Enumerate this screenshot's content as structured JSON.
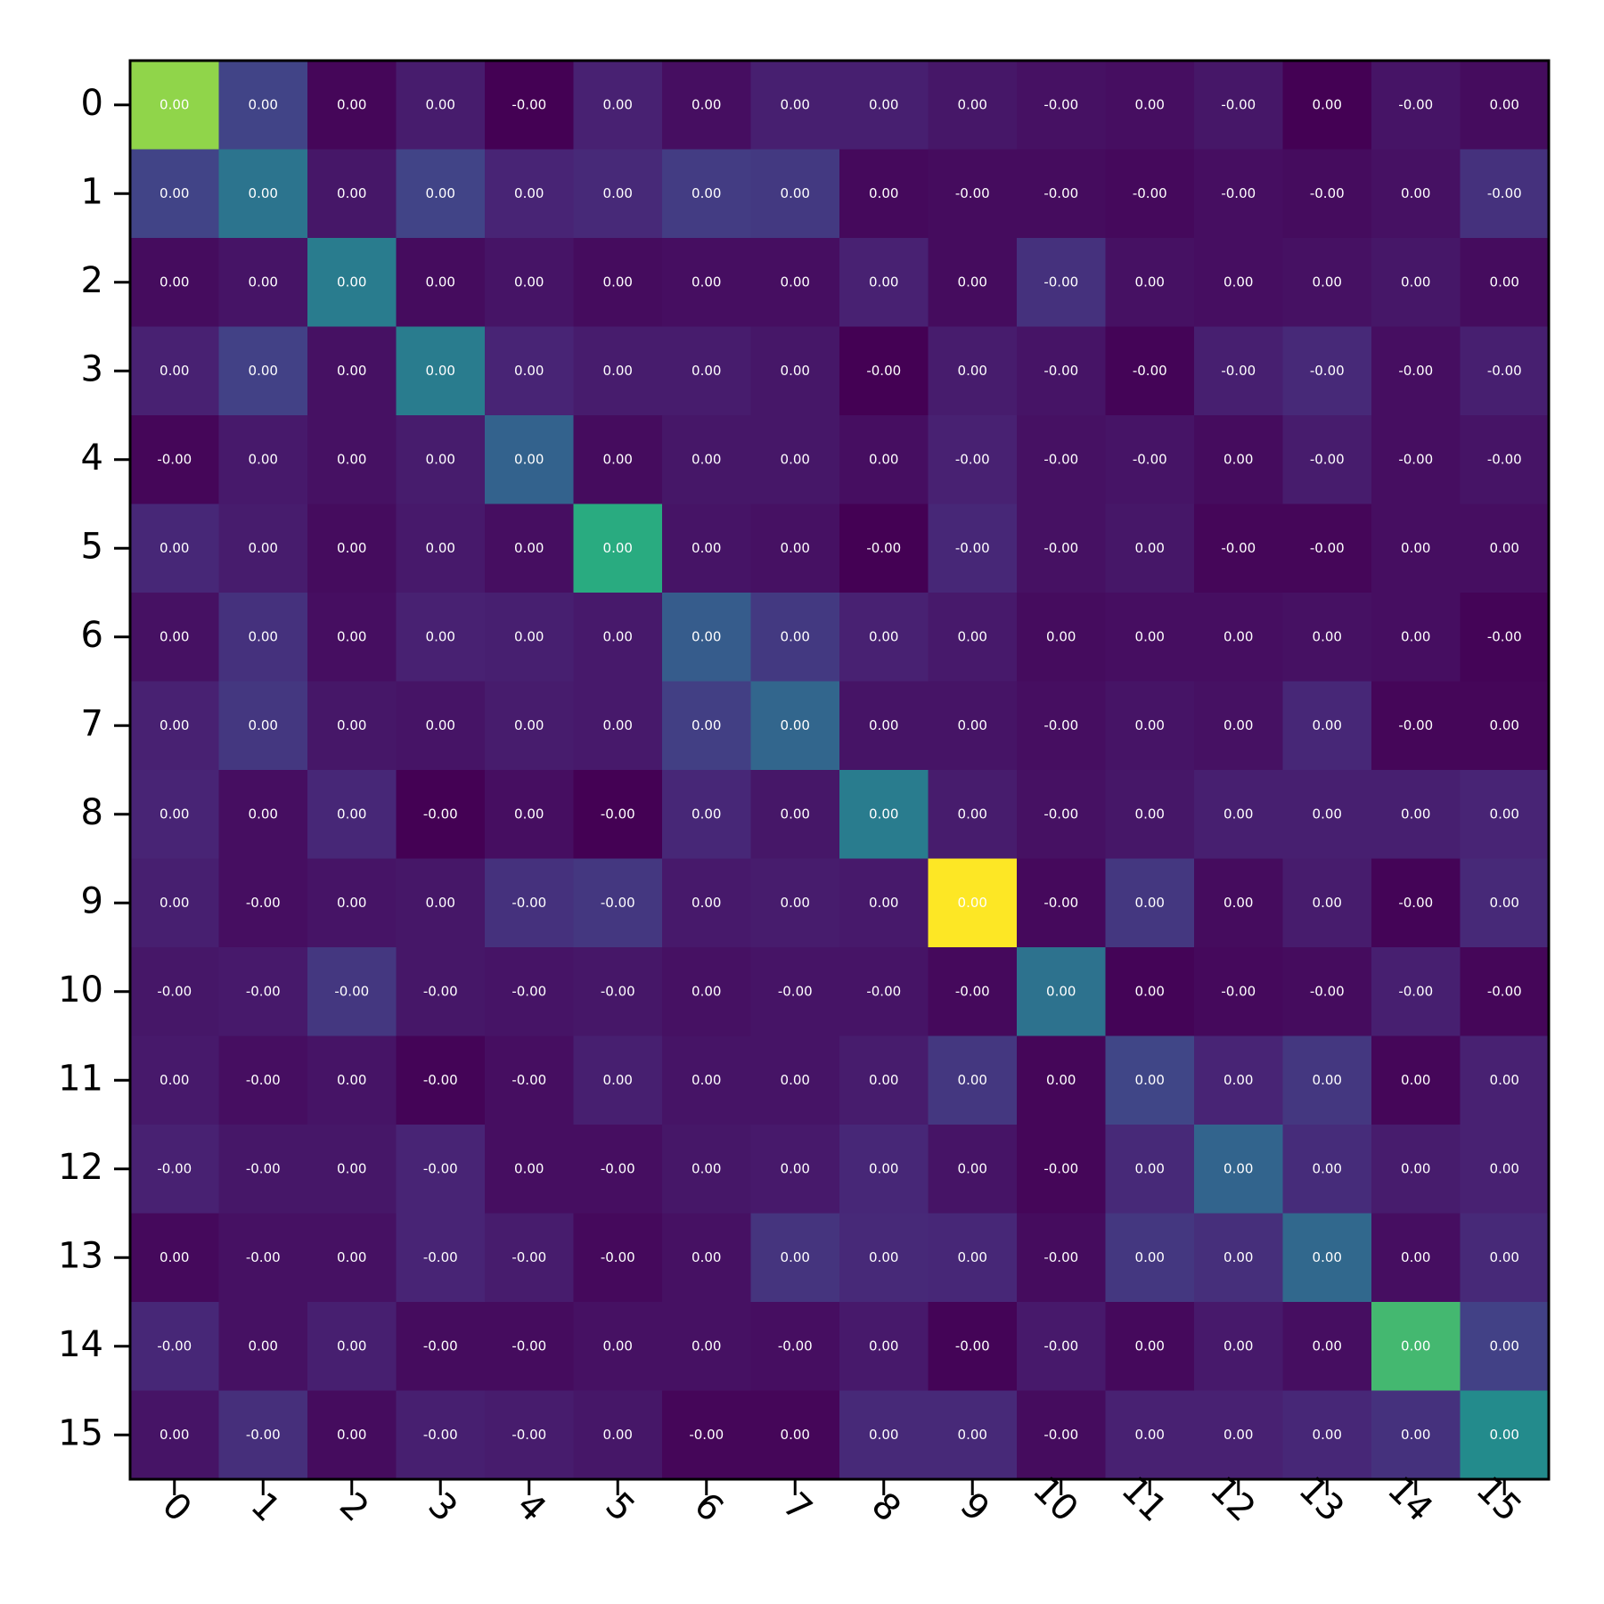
{
  "chart_data": {
    "type": "heatmap",
    "title": "",
    "xlabel": "",
    "ylabel": "",
    "x_ticks": [
      "0",
      "1",
      "2",
      "3",
      "4",
      "5",
      "6",
      "7",
      "8",
      "9",
      "10",
      "11",
      "12",
      "13",
      "14",
      "15"
    ],
    "y_ticks": [
      "0",
      "1",
      "2",
      "3",
      "4",
      "5",
      "6",
      "7",
      "8",
      "9",
      "10",
      "11",
      "12",
      "13",
      "14",
      "15"
    ],
    "x_tick_rotation_deg": 45,
    "colormap": "viridis",
    "grid": false,
    "legend": "none",
    "color_intensity": [
      [
        0.9,
        0.25,
        0.02,
        0.1,
        0.0,
        0.12,
        0.05,
        0.11,
        0.11,
        0.08,
        0.06,
        0.05,
        0.08,
        0.0,
        0.07,
        0.04
      ],
      [
        0.25,
        0.48,
        0.08,
        0.25,
        0.13,
        0.15,
        0.22,
        0.21,
        0.03,
        0.04,
        0.04,
        0.03,
        0.05,
        0.04,
        0.06,
        0.18
      ],
      [
        0.04,
        0.07,
        0.52,
        0.04,
        0.07,
        0.04,
        0.05,
        0.05,
        0.12,
        0.04,
        0.18,
        0.06,
        0.05,
        0.06,
        0.08,
        0.04
      ],
      [
        0.12,
        0.24,
        0.06,
        0.52,
        0.13,
        0.1,
        0.1,
        0.08,
        0.0,
        0.1,
        0.07,
        0.01,
        0.11,
        0.15,
        0.05,
        0.11
      ],
      [
        0.02,
        0.09,
        0.06,
        0.1,
        0.39,
        0.04,
        0.08,
        0.08,
        0.05,
        0.12,
        0.06,
        0.07,
        0.04,
        0.1,
        0.05,
        0.07
      ],
      [
        0.14,
        0.1,
        0.04,
        0.09,
        0.05,
        0.76,
        0.07,
        0.06,
        0.0,
        0.14,
        0.06,
        0.08,
        0.02,
        0.02,
        0.05,
        0.05
      ],
      [
        0.06,
        0.18,
        0.05,
        0.12,
        0.11,
        0.09,
        0.36,
        0.21,
        0.12,
        0.09,
        0.04,
        0.05,
        0.05,
        0.06,
        0.05,
        0.01
      ],
      [
        0.12,
        0.2,
        0.08,
        0.07,
        0.1,
        0.09,
        0.23,
        0.41,
        0.07,
        0.07,
        0.05,
        0.07,
        0.06,
        0.14,
        0.02,
        0.02
      ],
      [
        0.13,
        0.05,
        0.14,
        0.0,
        0.05,
        0.0,
        0.14,
        0.08,
        0.52,
        0.1,
        0.06,
        0.08,
        0.11,
        0.11,
        0.11,
        0.13
      ],
      [
        0.11,
        0.05,
        0.07,
        0.08,
        0.18,
        0.2,
        0.09,
        0.1,
        0.09,
        1.0,
        0.03,
        0.2,
        0.04,
        0.1,
        0.01,
        0.15
      ],
      [
        0.08,
        0.09,
        0.2,
        0.08,
        0.07,
        0.08,
        0.06,
        0.07,
        0.07,
        0.03,
        0.47,
        0.01,
        0.03,
        0.04,
        0.11,
        0.02
      ],
      [
        0.09,
        0.05,
        0.07,
        0.01,
        0.05,
        0.11,
        0.07,
        0.07,
        0.1,
        0.2,
        0.02,
        0.26,
        0.13,
        0.2,
        0.02,
        0.12
      ],
      [
        0.12,
        0.08,
        0.08,
        0.13,
        0.05,
        0.05,
        0.08,
        0.09,
        0.14,
        0.07,
        0.02,
        0.15,
        0.4,
        0.16,
        0.1,
        0.12
      ],
      [
        0.03,
        0.06,
        0.06,
        0.13,
        0.1,
        0.03,
        0.06,
        0.19,
        0.15,
        0.14,
        0.04,
        0.2,
        0.17,
        0.42,
        0.05,
        0.15
      ],
      [
        0.14,
        0.06,
        0.11,
        0.04,
        0.04,
        0.06,
        0.06,
        0.05,
        0.09,
        0.01,
        0.09,
        0.03,
        0.09,
        0.05,
        0.8,
        0.24
      ],
      [
        0.07,
        0.17,
        0.04,
        0.11,
        0.1,
        0.08,
        0.02,
        0.02,
        0.15,
        0.15,
        0.04,
        0.12,
        0.12,
        0.14,
        0.18,
        0.6
      ]
    ],
    "cell_labels": [
      [
        "0.00",
        "0.00",
        "0.00",
        "0.00",
        "-0.00",
        "0.00",
        "0.00",
        "0.00",
        "0.00",
        "0.00",
        "-0.00",
        "0.00",
        "-0.00",
        "0.00",
        "-0.00",
        "0.00"
      ],
      [
        "0.00",
        "0.00",
        "0.00",
        "0.00",
        "0.00",
        "0.00",
        "0.00",
        "0.00",
        "0.00",
        "-0.00",
        "-0.00",
        "-0.00",
        "-0.00",
        "-0.00",
        "0.00",
        "-0.00"
      ],
      [
        "0.00",
        "0.00",
        "0.00",
        "0.00",
        "0.00",
        "0.00",
        "0.00",
        "0.00",
        "0.00",
        "0.00",
        "-0.00",
        "0.00",
        "0.00",
        "0.00",
        "0.00",
        "0.00"
      ],
      [
        "0.00",
        "0.00",
        "0.00",
        "0.00",
        "0.00",
        "0.00",
        "0.00",
        "0.00",
        "-0.00",
        "0.00",
        "-0.00",
        "-0.00",
        "-0.00",
        "-0.00",
        "-0.00",
        "-0.00"
      ],
      [
        "-0.00",
        "0.00",
        "0.00",
        "0.00",
        "0.00",
        "0.00",
        "0.00",
        "0.00",
        "0.00",
        "-0.00",
        "-0.00",
        "-0.00",
        "0.00",
        "-0.00",
        "-0.00",
        "-0.00"
      ],
      [
        "0.00",
        "0.00",
        "0.00",
        "0.00",
        "0.00",
        "0.00",
        "0.00",
        "0.00",
        "-0.00",
        "-0.00",
        "-0.00",
        "0.00",
        "-0.00",
        "-0.00",
        "0.00",
        "0.00"
      ],
      [
        "0.00",
        "0.00",
        "0.00",
        "0.00",
        "0.00",
        "0.00",
        "0.00",
        "0.00",
        "0.00",
        "0.00",
        "0.00",
        "0.00",
        "0.00",
        "0.00",
        "0.00",
        "-0.00"
      ],
      [
        "0.00",
        "0.00",
        "0.00",
        "0.00",
        "0.00",
        "0.00",
        "0.00",
        "0.00",
        "0.00",
        "0.00",
        "-0.00",
        "0.00",
        "0.00",
        "0.00",
        "-0.00",
        "0.00"
      ],
      [
        "0.00",
        "0.00",
        "0.00",
        "-0.00",
        "0.00",
        "-0.00",
        "0.00",
        "0.00",
        "0.00",
        "0.00",
        "-0.00",
        "0.00",
        "0.00",
        "0.00",
        "0.00",
        "0.00"
      ],
      [
        "0.00",
        "-0.00",
        "0.00",
        "0.00",
        "-0.00",
        "-0.00",
        "0.00",
        "0.00",
        "0.00",
        "0.00",
        "-0.00",
        "0.00",
        "0.00",
        "0.00",
        "-0.00",
        "0.00"
      ],
      [
        "-0.00",
        "-0.00",
        "-0.00",
        "-0.00",
        "-0.00",
        "-0.00",
        "0.00",
        "-0.00",
        "-0.00",
        "-0.00",
        "0.00",
        "0.00",
        "-0.00",
        "-0.00",
        "-0.00",
        "-0.00"
      ],
      [
        "0.00",
        "-0.00",
        "0.00",
        "-0.00",
        "-0.00",
        "0.00",
        "0.00",
        "0.00",
        "0.00",
        "0.00",
        "0.00",
        "0.00",
        "0.00",
        "0.00",
        "0.00",
        "0.00"
      ],
      [
        "-0.00",
        "-0.00",
        "0.00",
        "-0.00",
        "0.00",
        "-0.00",
        "0.00",
        "0.00",
        "0.00",
        "0.00",
        "-0.00",
        "0.00",
        "0.00",
        "0.00",
        "0.00",
        "0.00"
      ],
      [
        "0.00",
        "-0.00",
        "0.00",
        "-0.00",
        "-0.00",
        "-0.00",
        "0.00",
        "0.00",
        "0.00",
        "0.00",
        "-0.00",
        "0.00",
        "0.00",
        "0.00",
        "0.00",
        "0.00"
      ],
      [
        "-0.00",
        "0.00",
        "0.00",
        "-0.00",
        "-0.00",
        "0.00",
        "0.00",
        "-0.00",
        "0.00",
        "-0.00",
        "-0.00",
        "0.00",
        "0.00",
        "0.00",
        "0.00",
        "0.00"
      ],
      [
        "0.00",
        "-0.00",
        "0.00",
        "-0.00",
        "-0.00",
        "0.00",
        "-0.00",
        "0.00",
        "0.00",
        "0.00",
        "-0.00",
        "0.00",
        "0.00",
        "0.00",
        "0.00",
        "0.00"
      ]
    ]
  }
}
